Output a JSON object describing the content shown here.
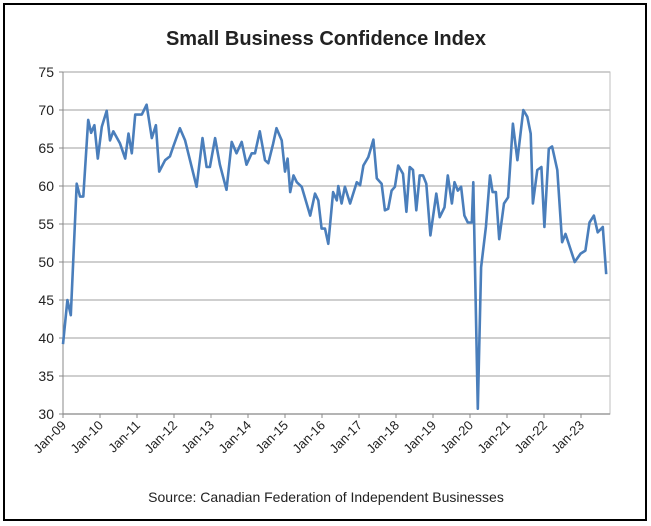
{
  "chart_data": {
    "type": "line",
    "title": "Small Business Confidence Index",
    "source": "Source: Canadian Federation of Independent Businesses",
    "xlabel": "",
    "ylabel": "",
    "ylim": [
      30,
      75
    ],
    "yticks": [
      30,
      35,
      40,
      45,
      50,
      55,
      60,
      65,
      70,
      75
    ],
    "xlim": [
      2009.0,
      2023.75
    ],
    "xtick_labels": [
      "Jan-09",
      "Jan-10",
      "Jan-11",
      "Jan-12",
      "Jan-13",
      "Jan-14",
      "Jan-15",
      "Jan-16",
      "Jan-17",
      "Jan-18",
      "Jan-19",
      "Jan-20",
      "Jan-21",
      "Jan-22",
      "Jan-23"
    ],
    "grid": true,
    "legend": "none",
    "series": [
      {
        "name": "Small Business Confidence Index",
        "color": "#4a7ebb",
        "x": [
          2009.0,
          2009.12,
          2009.21,
          2009.37,
          2009.46,
          2009.55,
          2009.68,
          2009.76,
          2009.85,
          2009.94,
          2010.05,
          2010.18,
          2010.27,
          2010.36,
          2010.54,
          2010.68,
          2010.77,
          2010.86,
          2010.95,
          2011.13,
          2011.26,
          2011.4,
          2011.51,
          2011.6,
          2011.76,
          2011.89,
          2011.98,
          2012.16,
          2012.3,
          2012.61,
          2012.77,
          2012.88,
          2012.97,
          2013.11,
          2013.24,
          2013.42,
          2013.56,
          2013.69,
          2013.83,
          2013.96,
          2014.1,
          2014.19,
          2014.32,
          2014.46,
          2014.55,
          2014.68,
          2014.77,
          2014.91,
          2015.0,
          2015.07,
          2015.14,
          2015.23,
          2015.32,
          2015.45,
          2015.68,
          2015.81,
          2015.9,
          2015.99,
          2016.08,
          2016.17,
          2016.3,
          2016.4,
          2016.44,
          2016.53,
          2016.62,
          2016.76,
          2016.94,
          2017.03,
          2017.12,
          2017.25,
          2017.39,
          2017.48,
          2017.61,
          2017.7,
          2017.79,
          2017.88,
          2017.97,
          2018.06,
          2018.19,
          2018.28,
          2018.37,
          2018.46,
          2018.55,
          2018.64,
          2018.73,
          2018.82,
          2018.93,
          2019.09,
          2019.18,
          2019.31,
          2019.4,
          2019.51,
          2019.58,
          2019.67,
          2019.76,
          2019.85,
          2019.94,
          2020.05,
          2020.09,
          2020.21,
          2020.3,
          2020.43,
          2020.54,
          2020.61,
          2020.7,
          2020.79,
          2020.92,
          2021.03,
          2021.16,
          2021.28,
          2021.44,
          2021.55,
          2021.64,
          2021.7,
          2021.82,
          2021.93,
          2022.01,
          2022.13,
          2022.22,
          2022.36,
          2022.49,
          2022.58,
          2022.83,
          2022.99,
          2023.12,
          2023.23,
          2023.35,
          2023.45,
          2023.59,
          2023.68
        ],
        "y": [
          39.2,
          45,
          43,
          60.3,
          58.6,
          58.6,
          68.7,
          67,
          68,
          63.6,
          67.8,
          69.9,
          66,
          67.2,
          65.6,
          63.6,
          66.9,
          64.3,
          69.4,
          69.4,
          70.7,
          66.3,
          68,
          61.9,
          63.4,
          63.9,
          65.2,
          67.6,
          66,
          59.9,
          66.3,
          62.5,
          62.5,
          66.3,
          62.8,
          59.5,
          65.8,
          64.3,
          65.8,
          62.8,
          64.3,
          64.3,
          67.2,
          63.4,
          63,
          65.6,
          67.6,
          66,
          61.9,
          63.6,
          59.2,
          61.4,
          60.5,
          59.9,
          56.1,
          59,
          58.1,
          54.4,
          54.4,
          52.4,
          59.2,
          58.1,
          60,
          57.7,
          59.9,
          57.7,
          60.5,
          60.1,
          62.7,
          63.8,
          66.1,
          61,
          60.3,
          56.8,
          57,
          59.4,
          59.9,
          62.7,
          61.6,
          56.6,
          62.5,
          62.1,
          56.8,
          61.4,
          61.4,
          60.3,
          53.5,
          59,
          55.9,
          57.2,
          61.4,
          57.7,
          60.5,
          59.4,
          59.9,
          56.1,
          55.2,
          55.2,
          60.5,
          30.7,
          49.3,
          54.6,
          61.4,
          59.2,
          59.2,
          53,
          57.7,
          58.5,
          68.2,
          63.4,
          70,
          69.1,
          66.9,
          57.7,
          62.1,
          62.5,
          54.6,
          64.9,
          65.2,
          62.1,
          52.6,
          53.7,
          50,
          51.1,
          51.5,
          55.2,
          56.1,
          53.9,
          54.6,
          48.4
        ]
      }
    ]
  }
}
